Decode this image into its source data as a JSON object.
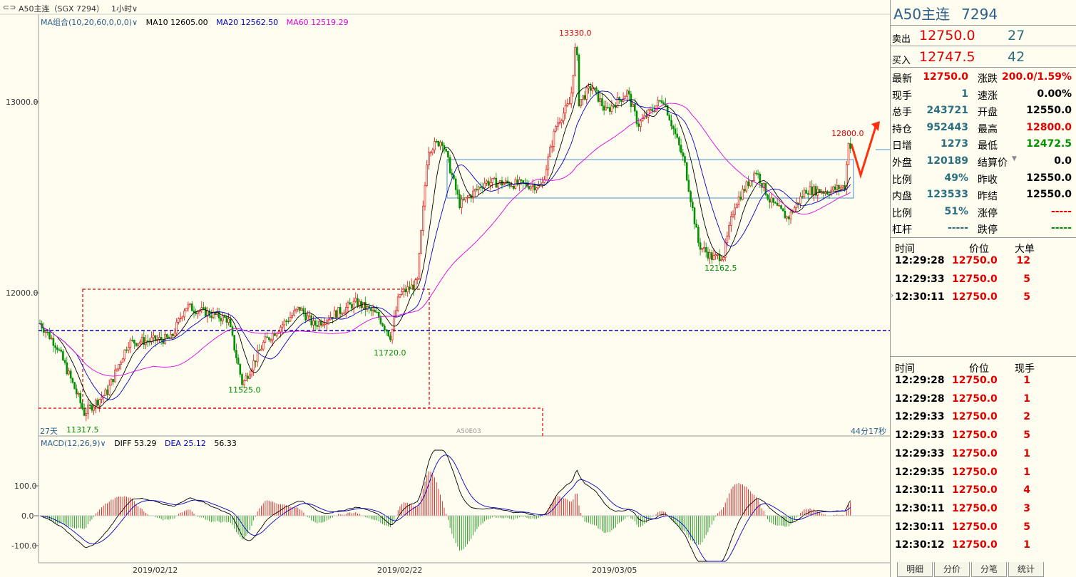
{
  "header": {
    "title": "A50主连（SGX 7294）",
    "period": "1小时"
  },
  "ma_legend": {
    "label": "MA组合(10,20,60,0,0,0)",
    "ma10": "MA10 12605.00",
    "ma20": "MA20 12562.50",
    "ma60": "MA60 12519.29"
  },
  "price_axis": {
    "labels": [
      "13000.0",
      "12000.0"
    ]
  },
  "annotations": {
    "high": "13330.0",
    "low": "12162.5",
    "low2": "11720.0",
    "low3": "11525.0",
    "low4": "11317.5",
    "recent": "12800.0",
    "days": "27天",
    "watermark": "A50E03",
    "countdown": "44分17秒"
  },
  "macd_legend": {
    "label": "MACD(12,26,9)",
    "diff": "DIFF 53.29",
    "dea": "DEA 25.12",
    "macd": "56.33"
  },
  "macd_axis": {
    "labels": [
      "100.0",
      "0.0",
      "-100.0"
    ]
  },
  "date_axis": {
    "labels": [
      "2019/02/12",
      "2019/02/22",
      "2019/03/05"
    ]
  },
  "quote": {
    "name": "A50主连",
    "code": "7294",
    "sell_label": "卖出",
    "sell_price": "12750.0",
    "sell_qty": "27",
    "buy_label": "买入",
    "buy_price": "12747.5",
    "buy_qty": "42",
    "fields": [
      {
        "l": "最新",
        "v": "12750.0",
        "l2": "涨跌",
        "v2": "200.0/1.59%"
      },
      {
        "l": "现手",
        "v": "1",
        "l2": "速涨",
        "v2": "0.00%"
      },
      {
        "l": "总手",
        "v": "243721",
        "l2": "开盘",
        "v2": "12550.0"
      },
      {
        "l": "持仓",
        "v": "952443",
        "l2": "最高",
        "v2": "12800.0"
      },
      {
        "l": "日增",
        "v": "1273",
        "l2": "最低",
        "v2": "12472.5"
      },
      {
        "l": "外盘",
        "v": "120189",
        "l2": "结算价",
        "v2": "0.0"
      },
      {
        "l": "比例",
        "v": "49%",
        "l2": "昨收",
        "v2": "12550.0"
      },
      {
        "l": "内盘",
        "v": "123533",
        "l2": "昨结",
        "v2": "12550.0"
      },
      {
        "l": "比例",
        "v": "51%",
        "l2": "涨停",
        "v2": "-----"
      },
      {
        "l": "杠杆",
        "v": "-----",
        "l2": "跌停",
        "v2": "-----"
      }
    ]
  },
  "big_orders": {
    "headers": [
      "时间",
      "价位",
      "大单"
    ],
    "rows": [
      [
        "12:29:28",
        "12750.0",
        "12"
      ],
      [
        "12:29:33",
        "12750.0",
        "5"
      ],
      [
        "12:30:11",
        "12750.0",
        "5"
      ]
    ]
  },
  "ticks": {
    "headers": [
      "时间",
      "价位",
      "现手"
    ],
    "rows": [
      [
        "12:29:28",
        "12750.0",
        "1"
      ],
      [
        "12:29:28",
        "12750.0",
        "1"
      ],
      [
        "12:29:33",
        "12750.0",
        "2"
      ],
      [
        "12:29:33",
        "12750.0",
        "5"
      ],
      [
        "12:29:33",
        "12750.0",
        "1"
      ],
      [
        "12:29:35",
        "12750.0",
        "1"
      ],
      [
        "12:30:11",
        "12750.0",
        "4"
      ],
      [
        "12:30:11",
        "12750.0",
        "3"
      ],
      [
        "12:30:11",
        "12750.0",
        "5"
      ],
      [
        "12:30:12",
        "12750.0",
        "1"
      ]
    ]
  },
  "tabs": [
    "明细",
    "分价",
    "分笔",
    "统计"
  ],
  "colors": {
    "up": "#e00000",
    "down": "#009000",
    "ma10": "#000000",
    "ma20": "#0000c0",
    "ma60": "#e000e0"
  }
}
